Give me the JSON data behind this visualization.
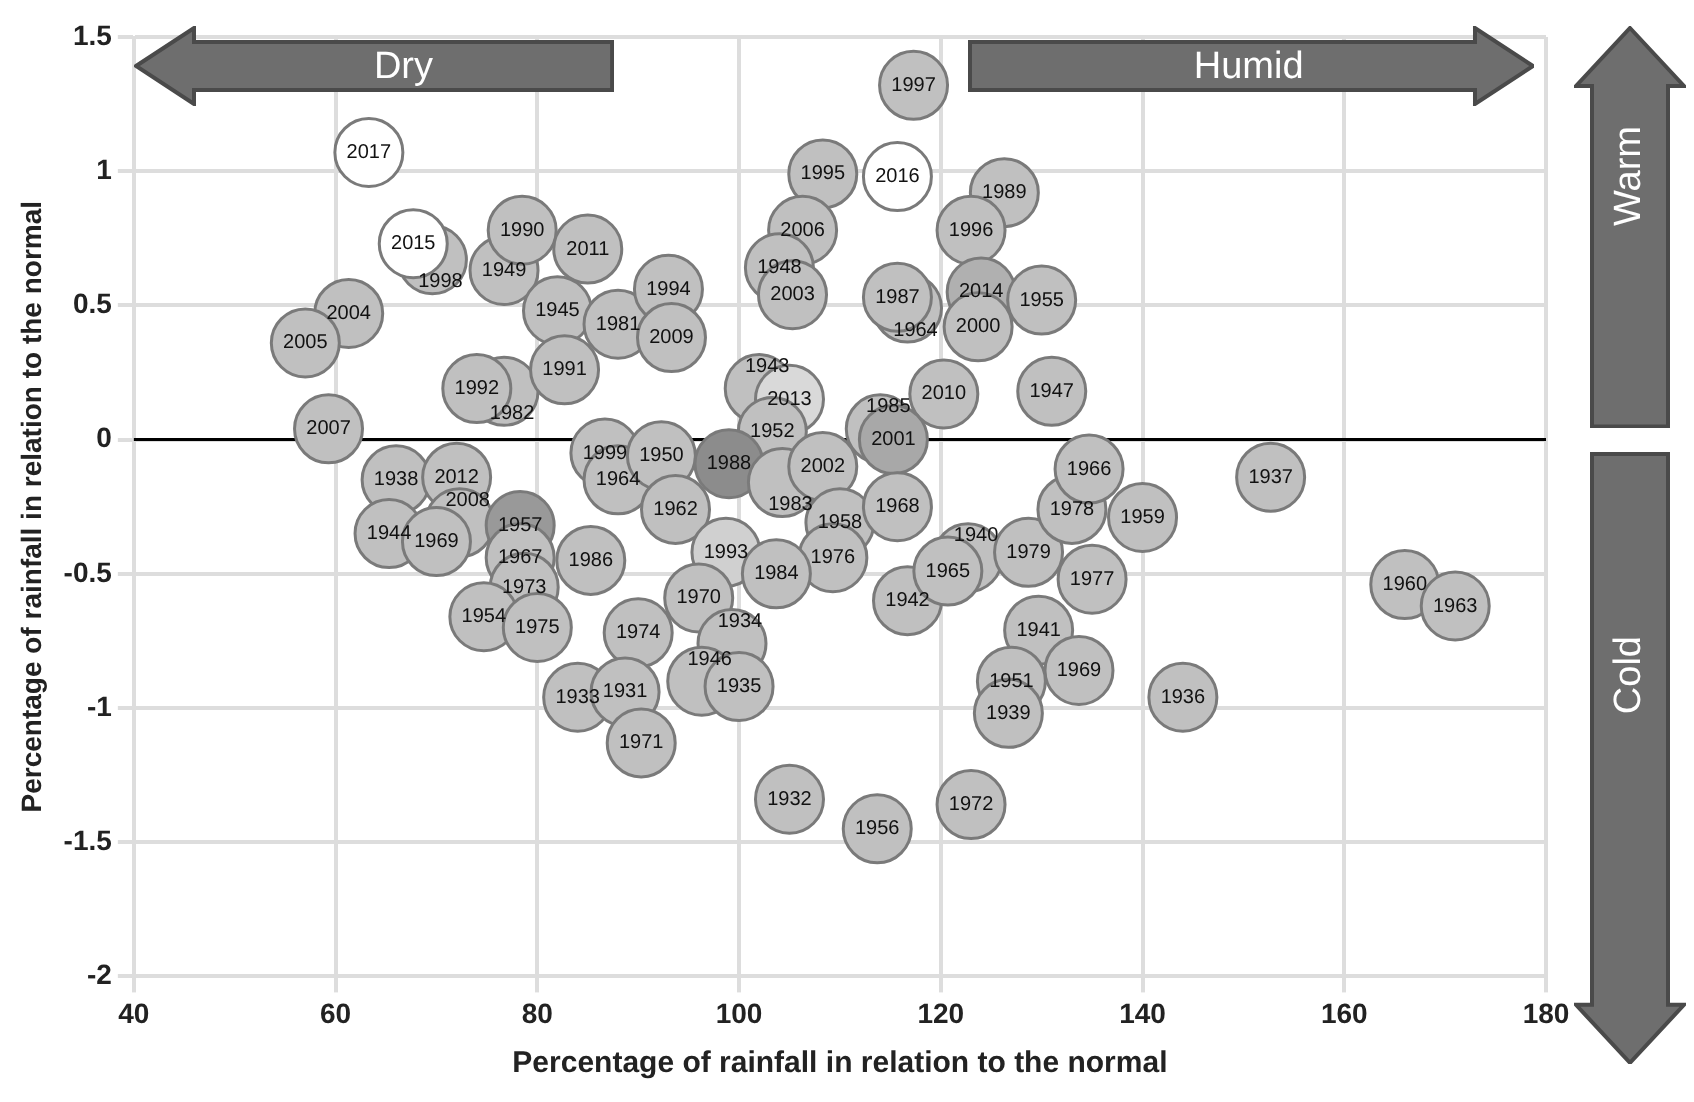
{
  "chart_data": {
    "type": "scatter",
    "xlabel": "Percentage of rainfall in relation to the normal",
    "ylabel": "Percentage of rainfall in relation to the normal",
    "xlim": [
      40,
      180
    ],
    "xticks": [
      40,
      60,
      80,
      100,
      120,
      140,
      160,
      180
    ],
    "ylim": [
      -2,
      1.5
    ],
    "yticks": [
      {
        "value": -2,
        "label": "-2"
      },
      -1.5,
      {
        "value": -1,
        "label": "-1"
      },
      -0.5,
      0,
      0.5,
      {
        "value": 1,
        "label": "1"
      },
      1.5
    ],
    "grid": true,
    "legend": false,
    "marker": "circle",
    "ref_lines": [
      {
        "axis": "y",
        "value": 0,
        "color": "#000000"
      }
    ],
    "annotations": [
      "Dry",
      "Humid",
      "Warm",
      "Cold",
      {
        "text": "2017",
        "x": 63.3,
        "y": 1.07
      },
      {
        "text": "1998",
        "x": 69.6,
        "y": 0.67
      },
      {
        "text": "2015",
        "x": 67.7,
        "y": 0.73
      },
      {
        "text": "1949",
        "x": 76.7,
        "y": 0.63
      },
      {
        "text": "1990",
        "x": 78.5,
        "y": 0.78
      },
      {
        "text": "2011",
        "x": 85,
        "y": 0.71
      },
      {
        "text": "2004",
        "x": 61.3,
        "y": 0.47
      },
      {
        "text": "2005",
        "x": 57,
        "y": 0.36
      },
      {
        "text": "1945",
        "x": 82,
        "y": 0.48
      },
      {
        "text": "1981",
        "x": 88,
        "y": 0.43
      },
      {
        "text": "2007",
        "x": 59.3,
        "y": 0.04
      },
      {
        "text": "1982",
        "x": 76.7,
        "y": 0.18
      },
      {
        "text": "1992",
        "x": 74,
        "y": 0.19
      },
      {
        "text": "1991",
        "x": 82.7,
        "y": 0.26
      },
      {
        "text": "1994",
        "x": 93,
        "y": 0.56
      },
      {
        "text": "2009",
        "x": 93.3,
        "y": 0.38
      },
      {
        "text": "1997",
        "x": 117.3,
        "y": 1.32
      },
      {
        "text": "1995",
        "x": 108.3,
        "y": 0.99
      },
      {
        "text": "2016",
        "x": 115.7,
        "y": 0.98
      },
      {
        "text": "2006",
        "x": 106.3,
        "y": 0.78
      },
      {
        "text": "1948",
        "x": 104,
        "y": 0.64
      },
      {
        "text": "2003",
        "x": 105.3,
        "y": 0.54
      },
      {
        "text": "1964",
        "x": 116.7,
        "y": 0.49
      },
      {
        "text": "1987",
        "x": 115.7,
        "y": 0.53
      },
      {
        "text": "1989",
        "x": 126.3,
        "y": 0.92
      },
      {
        "text": "1996",
        "x": 123,
        "y": 0.78
      },
      {
        "text": "2014",
        "x": 124,
        "y": 0.55
      },
      {
        "text": "2000",
        "x": 123.7,
        "y": 0.42
      },
      {
        "text": "1955",
        "x": 130,
        "y": 0.52
      },
      {
        "text": "1947",
        "x": 131,
        "y": 0.18
      },
      {
        "text": "2010",
        "x": 120.3,
        "y": 0.17
      },
      {
        "text": "1943",
        "x": 102,
        "y": 0.19
      },
      {
        "text": "2013",
        "x": 105,
        "y": 0.15
      },
      {
        "text": "1952",
        "x": 103.3,
        "y": 0.03
      },
      {
        "text": "1985",
        "x": 114,
        "y": 0.04
      },
      {
        "text": "2001",
        "x": 115.3,
        "y": 0.0
      },
      {
        "text": "1938",
        "x": 66,
        "y": -0.15
      },
      {
        "text": "2012",
        "x": 72,
        "y": -0.14
      },
      {
        "text": "1944",
        "x": 65.3,
        "y": -0.35
      },
      {
        "text": "2008",
        "x": 72.3,
        "y": -0.31
      },
      {
        "text": "1969",
        "x": 70,
        "y": -0.38
      },
      {
        "text": "1957",
        "x": 78.3,
        "y": -0.32
      },
      {
        "text": "1967",
        "x": 78.3,
        "y": -0.44
      },
      {
        "text": "1973",
        "x": 78.7,
        "y": -0.55
      },
      {
        "text": "1954",
        "x": 74.7,
        "y": -0.66
      },
      {
        "text": "1975",
        "x": 80,
        "y": -0.7
      },
      {
        "text": "1986",
        "x": 85.3,
        "y": -0.45
      },
      {
        "text": "1974",
        "x": 90,
        "y": -0.72
      },
      {
        "text": "1933",
        "x": 84,
        "y": -0.96
      },
      {
        "text": "1931",
        "x": 88.7,
        "y": -0.94
      },
      {
        "text": "1971",
        "x": 90.3,
        "y": -1.13
      },
      {
        "text": "1999",
        "x": 86.7,
        "y": -0.05
      },
      {
        "text": "1964",
        "x": 88,
        "y": -0.15
      },
      {
        "text": "1950",
        "x": 92.3,
        "y": -0.06
      },
      {
        "text": "1988",
        "x": 99,
        "y": -0.09
      },
      {
        "text": "1962",
        "x": 93.7,
        "y": -0.26
      },
      {
        "text": "1983",
        "x": 104.3,
        "y": -0.16
      },
      {
        "text": "2002",
        "x": 108.3,
        "y": -0.1
      },
      {
        "text": "1958",
        "x": 110,
        "y": -0.31
      },
      {
        "text": "1968",
        "x": 115.7,
        "y": -0.25
      },
      {
        "text": "1993",
        "x": 98.7,
        "y": -0.42
      },
      {
        "text": "1976",
        "x": 109.3,
        "y": -0.44
      },
      {
        "text": "1984",
        "x": 103.7,
        "y": -0.5
      },
      {
        "text": "1970",
        "x": 96,
        "y": -0.59
      },
      {
        "text": "1934",
        "x": 99.3,
        "y": -0.76
      },
      {
        "text": "1946",
        "x": 96.3,
        "y": -0.9
      },
      {
        "text": "1935",
        "x": 100,
        "y": -0.92
      },
      {
        "text": "1942",
        "x": 116.7,
        "y": -0.6
      },
      {
        "text": "1940",
        "x": 122.7,
        "y": -0.44
      },
      {
        "text": "1965",
        "x": 120.7,
        "y": -0.49
      },
      {
        "text": "1979",
        "x": 128.7,
        "y": -0.42
      },
      {
        "text": "1978",
        "x": 133,
        "y": -0.26
      },
      {
        "text": "1966",
        "x": 134.7,
        "y": -0.11
      },
      {
        "text": "1959",
        "x": 140,
        "y": -0.29
      },
      {
        "text": "1977",
        "x": 135,
        "y": -0.52
      },
      {
        "text": "1941",
        "x": 129.7,
        "y": -0.71
      },
      {
        "text": "1969",
        "x": 133.7,
        "y": -0.86
      },
      {
        "text": "1951",
        "x": 127,
        "y": -0.9
      },
      {
        "text": "1939",
        "x": 126.7,
        "y": -1.02
      },
      {
        "text": "1932",
        "x": 105,
        "y": -1.34
      },
      {
        "text": "1956",
        "x": 113.7,
        "y": -1.45
      },
      {
        "text": "1972",
        "x": 123,
        "y": -1.36
      },
      {
        "text": "1937",
        "x": 152.7,
        "y": -0.14
      },
      {
        "text": "1960",
        "x": 166,
        "y": -0.54
      },
      {
        "text": "1963",
        "x": 171,
        "y": -0.62
      },
      {
        "text": "1936",
        "x": 144,
        "y": -0.96
      }
    ],
    "series": [
      {
        "x": [
          63.3,
          69.6,
          67.7,
          76.7,
          78.5,
          85,
          61.3,
          57,
          82,
          88,
          59.3,
          76.7,
          74,
          82.7,
          93,
          93.3,
          117.3,
          108.3,
          115.7,
          106.3,
          104,
          105.3,
          116.7,
          115.7,
          126.3,
          123,
          124,
          123.7,
          130,
          131,
          120.3,
          102,
          105,
          103.3,
          114,
          115.3,
          66,
          72,
          65.3,
          72.3,
          70,
          78.3,
          78.3,
          78.7,
          74.7,
          80,
          85.3,
          90,
          84,
          88.7,
          90.3,
          86.7,
          88,
          92.3,
          99,
          93.7,
          104.3,
          108.3,
          110,
          115.7,
          98.7,
          109.3,
          103.7,
          96,
          99.3,
          96.3,
          100,
          116.7,
          122.7,
          120.7,
          128.7,
          133,
          134.7,
          140,
          135,
          129.7,
          133.7,
          127,
          126.7,
          105,
          113.7,
          123,
          152.7,
          166,
          171,
          144
        ],
        "values": [
          1.07,
          0.67,
          0.73,
          0.63,
          0.78,
          0.71,
          0.47,
          0.36,
          0.48,
          0.43,
          0.04,
          0.18,
          0.19,
          0.26,
          0.56,
          0.38,
          1.32,
          0.99,
          0.98,
          0.78,
          0.64,
          0.54,
          0.49,
          0.53,
          0.92,
          0.78,
          0.55,
          0.42,
          0.52,
          0.18,
          0.17,
          0.19,
          0.15,
          0.03,
          0.04,
          0.0,
          -0.15,
          -0.14,
          -0.35,
          -0.31,
          -0.38,
          -0.32,
          -0.44,
          -0.55,
          -0.66,
          -0.7,
          -0.45,
          -0.72,
          -0.96,
          -0.94,
          -1.13,
          -0.05,
          -0.15,
          -0.06,
          -0.09,
          -0.26,
          -0.16,
          -0.1,
          -0.31,
          -0.25,
          -0.42,
          -0.44,
          -0.5,
          -0.59,
          -0.76,
          -0.9,
          -0.92,
          -0.6,
          -0.44,
          -0.49,
          -0.42,
          -0.26,
          -0.11,
          -0.29,
          -0.52,
          -0.71,
          -0.86,
          -0.9,
          -1.02,
          -1.34,
          -1.45,
          -1.36,
          -0.14,
          -0.54,
          -0.62,
          -0.96
        ],
        "colors": [
          "#ffffff",
          "#c0c0c0",
          "#ffffff",
          "#c0c0c0",
          "#c0c0c0",
          "#c0c0c0",
          "#c0c0c0",
          "#c0c0c0",
          "#c0c0c0",
          "#c0c0c0",
          "#c0c0c0",
          "#c0c0c0",
          "#c0c0c0",
          "#c0c0c0",
          "#c0c0c0",
          "#c0c0c0",
          "#c0c0c0",
          "#c0c0c0",
          "#ffffff",
          "#c0c0c0",
          "#c0c0c0",
          "#c0c0c0",
          "#c0c0c0",
          "#c0c0c0",
          "#c0c0c0",
          "#c0c0c0",
          "#b0b0b0",
          "#c0c0c0",
          "#c0c0c0",
          "#c0c0c0",
          "#c0c0c0",
          "#c0c0c0",
          "#d9d9d9",
          "#c0c0c0",
          "#c0c0c0",
          "#a8a8a8",
          "#c0c0c0",
          "#c0c0c0",
          "#c0c0c0",
          "#c0c0c0",
          "#c0c0c0",
          "#999999",
          "#c0c0c0",
          "#c0c0c0",
          "#c0c0c0",
          "#c0c0c0",
          "#c0c0c0",
          "#c0c0c0",
          "#c0c0c0",
          "#c0c0c0",
          "#c0c0c0",
          "#c0c0c0",
          "#c0c0c0",
          "#c0c0c0",
          "#8c8c8c",
          "#c0c0c0",
          "#c0c0c0",
          "#c0c0c0",
          "#c0c0c0",
          "#c0c0c0",
          "#d0d0d0",
          "#c0c0c0",
          "#c0c0c0",
          "#c0c0c0",
          "#c0c0c0",
          "#c0c0c0",
          "#c0c0c0",
          "#c0c0c0",
          "#c0c0c0",
          "#c0c0c0",
          "#c0c0c0",
          "#c0c0c0",
          "#c0c0c0",
          "#c0c0c0",
          "#c0c0c0",
          "#c0c0c0",
          "#c0c0c0",
          "#c0c0c0",
          "#c0c0c0",
          "#c0c0c0",
          "#c0c0c0",
          "#c0c0c0",
          "#c0c0c0",
          "#c0c0c0",
          "#c0c0c0",
          "#c0c0c0"
        ]
      }
    ]
  }
}
